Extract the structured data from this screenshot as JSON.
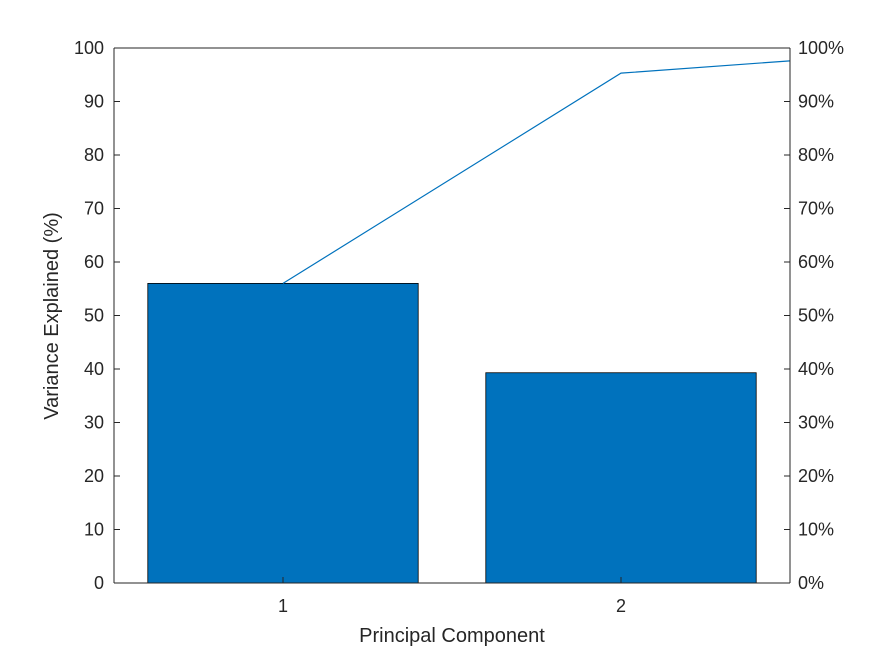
{
  "chart_data": {
    "type": "bar",
    "categories": [
      "1",
      "2"
    ],
    "values": [
      56.0,
      39.3
    ],
    "xlabel": "Principal Component",
    "ylabel": "Variance Explained (%)",
    "ylim": [
      0,
      100
    ],
    "yticks": [
      "0",
      "10",
      "20",
      "30",
      "40",
      "50",
      "60",
      "70",
      "80",
      "90",
      "100"
    ],
    "y2ticks": [
      "0%",
      "10%",
      "20%",
      "30%",
      "40%",
      "50%",
      "60%",
      "70%",
      "80%",
      "90%",
      "100%"
    ],
    "y2lim": [
      0,
      1
    ],
    "cumulative": {
      "x": [
        1,
        2,
        2.5
      ],
      "values": [
        0.56,
        0.953,
        0.976
      ]
    },
    "xlim": [
      0.5,
      2.5
    ],
    "grid": false,
    "colors": {
      "bar": "#0072BD",
      "bar_edge": "#000000",
      "line": "#0072BD",
      "axis": "#262626"
    }
  }
}
